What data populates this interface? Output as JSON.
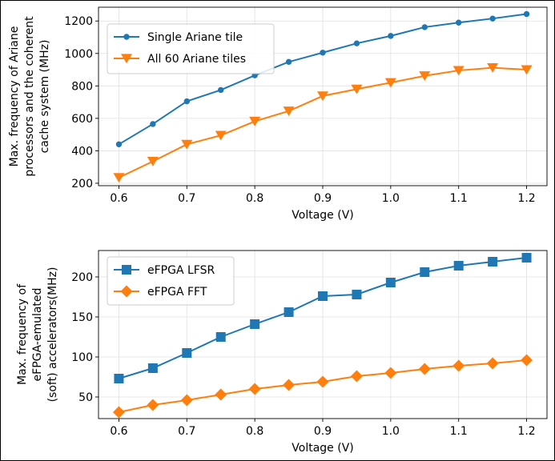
{
  "chart_data": [
    {
      "type": "line",
      "title": "",
      "xlabel": "Voltage (V)",
      "ylabel_lines": [
        "Max. frequency of Ariane",
        "processors and the coherent",
        "cache system (MHz)"
      ],
      "x": [
        0.6,
        0.65,
        0.7,
        0.75,
        0.8,
        0.85,
        0.9,
        0.95,
        1.0,
        1.05,
        1.1,
        1.15,
        1.2
      ],
      "xlim": [
        0.57,
        1.23
      ],
      "ylim": [
        185,
        1285
      ],
      "xticks": [
        "0.6",
        "0.7",
        "0.8",
        "0.9",
        "1.0",
        "1.1",
        "1.2"
      ],
      "xtick_values": [
        0.6,
        0.7,
        0.8,
        0.9,
        1.0,
        1.1,
        1.2
      ],
      "yticks": [
        "200",
        "400",
        "600",
        "800",
        "1000",
        "1200"
      ],
      "ytick_values": [
        200,
        400,
        600,
        800,
        1000,
        1200
      ],
      "grid": true,
      "legend_position": "upper-left",
      "series": [
        {
          "name": "Single Ariane tile",
          "color": "#1f77b4",
          "marker": "circle",
          "values": [
            440,
            565,
            705,
            775,
            865,
            948,
            1005,
            1062,
            1108,
            1162,
            1190,
            1215,
            1243
          ]
        },
        {
          "name": "All 60 Ariane tiles",
          "color": "#ff7f0e",
          "marker": "triangle-down",
          "values": [
            235,
            335,
            440,
            495,
            582,
            645,
            738,
            780,
            820,
            862,
            895,
            912,
            900
          ]
        }
      ]
    },
    {
      "type": "line",
      "title": "",
      "xlabel": "Voltage (V)",
      "ylabel_lines": [
        "Max. frequency of",
        "eFPGA-emulated",
        "(soft) accelerators(MHz)"
      ],
      "x": [
        0.6,
        0.65,
        0.7,
        0.75,
        0.8,
        0.85,
        0.9,
        0.95,
        1.0,
        1.05,
        1.1,
        1.15,
        1.2
      ],
      "xlim": [
        0.57,
        1.23
      ],
      "ylim": [
        23,
        233
      ],
      "xticks": [
        "0.6",
        "0.7",
        "0.8",
        "0.9",
        "1.0",
        "1.1",
        "1.2"
      ],
      "xtick_values": [
        0.6,
        0.7,
        0.8,
        0.9,
        1.0,
        1.1,
        1.2
      ],
      "yticks": [
        "50",
        "100",
        "150",
        "200"
      ],
      "ytick_values": [
        50,
        100,
        150,
        200
      ],
      "grid": true,
      "legend_position": "upper-left",
      "series": [
        {
          "name": "eFPGA LFSR",
          "color": "#1f77b4",
          "marker": "square",
          "values": [
            73,
            86,
            105,
            125,
            141,
            156,
            176,
            178,
            193,
            206,
            214,
            219,
            224
          ]
        },
        {
          "name": "eFPGA FFT",
          "color": "#ff7f0e",
          "marker": "diamond",
          "values": [
            31,
            40,
            46,
            53,
            60,
            65,
            69,
            76,
            80,
            85,
            89,
            92,
            96
          ]
        }
      ]
    }
  ]
}
